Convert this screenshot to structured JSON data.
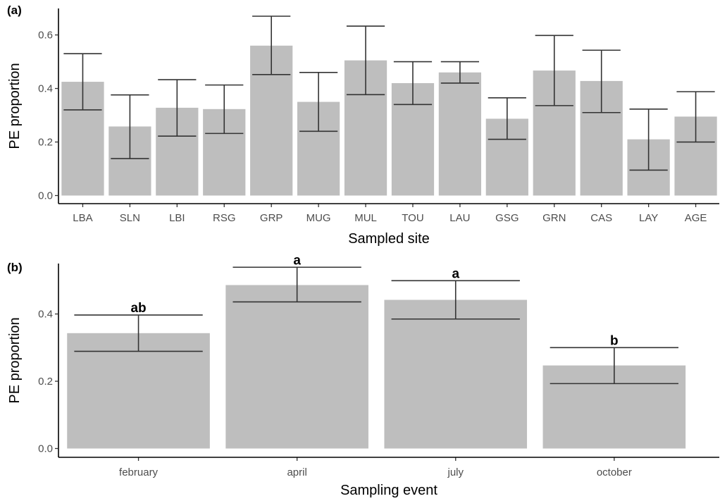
{
  "chart_data": [
    {
      "type": "bar",
      "panel_label": "(a)",
      "categories": [
        "LBA",
        "SLN",
        "LBI",
        "RSG",
        "GRP",
        "MUG",
        "MUL",
        "TOU",
        "LAU",
        "GSG",
        "GRN",
        "CAS",
        "LAY",
        "AGE"
      ],
      "values": [
        0.425,
        0.258,
        0.328,
        0.323,
        0.56,
        0.35,
        0.505,
        0.42,
        0.46,
        0.287,
        0.467,
        0.428,
        0.21,
        0.295
      ],
      "error_low": [
        0.32,
        0.138,
        0.222,
        0.232,
        0.452,
        0.24,
        0.377,
        0.34,
        0.42,
        0.21,
        0.336,
        0.31,
        0.095,
        0.2
      ],
      "error_high": [
        0.53,
        0.376,
        0.433,
        0.413,
        0.67,
        0.46,
        0.633,
        0.5,
        0.5,
        0.365,
        0.598,
        0.543,
        0.323,
        0.388
      ],
      "xlabel": "Sampled site",
      "ylabel": "PE proportion",
      "ylim": [
        0,
        0.7
      ],
      "yticks": [
        0.0,
        0.2,
        0.4,
        0.6
      ],
      "ytick_labels": [
        "0.0",
        "0.2",
        "0.4",
        "0.6"
      ],
      "grid": false,
      "bar_color": "#bebebe"
    },
    {
      "type": "bar",
      "panel_label": "(b)",
      "categories": [
        "february",
        "april",
        "july",
        "october"
      ],
      "values": [
        0.343,
        0.486,
        0.442,
        0.247
      ],
      "error_low": [
        0.289,
        0.436,
        0.385,
        0.193
      ],
      "error_high": [
        0.397,
        0.539,
        0.499,
        0.3
      ],
      "annotations": [
        "ab",
        "a",
        "a",
        "b"
      ],
      "xlabel": "Sampling event",
      "ylabel": "PE proportion",
      "ylim": [
        0,
        0.55
      ],
      "yticks": [
        0.0,
        0.2,
        0.4
      ],
      "ytick_labels": [
        "0.0",
        "0.2",
        "0.4"
      ],
      "grid": false,
      "bar_color": "#bebebe"
    }
  ]
}
